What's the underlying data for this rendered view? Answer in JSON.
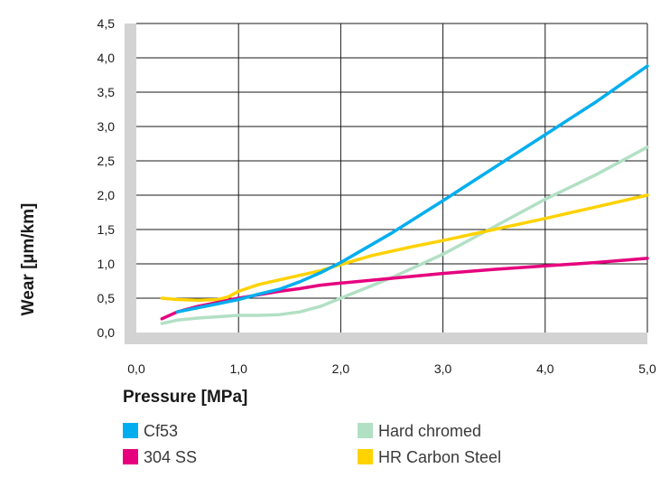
{
  "chart_data": {
    "type": "line",
    "title": "",
    "xlabel": "Pressure [MPa]",
    "ylabel": "Wear [µm/km]",
    "xlim": [
      0,
      5
    ],
    "ylim": [
      0,
      4.5
    ],
    "x_ticks": [
      0,
      1,
      2,
      3,
      4,
      5
    ],
    "x_tick_labels": [
      "0,0",
      "1,0",
      "2,0",
      "3,0",
      "4,0",
      "5,0"
    ],
    "y_ticks": [
      0,
      0.5,
      1,
      1.5,
      2,
      2.5,
      3,
      3.5,
      4,
      4.5
    ],
    "y_tick_labels": [
      "0,0",
      "0,5",
      "1,0",
      "1,5",
      "2,0",
      "2,5",
      "3,0",
      "3,5",
      "4,0",
      "4,5"
    ],
    "grid": true,
    "legend_position": "bottom",
    "series": [
      {
        "name": "Cf53",
        "color": "#00aeef",
        "x": [
          0.4,
          0.6,
          0.8,
          1.0,
          1.2,
          1.4,
          1.6,
          1.8,
          2.0,
          2.5,
          3.0,
          3.5,
          4.0,
          4.5,
          5.0
        ],
        "y": [
          0.3,
          0.36,
          0.42,
          0.48,
          0.56,
          0.63,
          0.74,
          0.87,
          1.02,
          1.45,
          1.92,
          2.4,
          2.88,
          3.36,
          3.88
        ]
      },
      {
        "name": "304 SS",
        "color": "#e6007e",
        "x": [
          0.25,
          0.4,
          0.6,
          0.8,
          1.0,
          1.2,
          1.4,
          1.6,
          1.8,
          2.0,
          2.5,
          3.0,
          3.5,
          4.0,
          4.5,
          5.0
        ],
        "y": [
          0.2,
          0.3,
          0.38,
          0.44,
          0.5,
          0.55,
          0.6,
          0.64,
          0.69,
          0.72,
          0.79,
          0.86,
          0.92,
          0.97,
          1.02,
          1.08
        ]
      },
      {
        "name": "Hard chromed",
        "color": "#b2e0c4",
        "x": [
          0.25,
          0.4,
          0.6,
          0.8,
          1.0,
          1.2,
          1.4,
          1.6,
          1.8,
          2.0,
          2.25,
          2.5,
          3.0,
          3.5,
          4.0,
          4.5,
          5.0
        ],
        "y": [
          0.13,
          0.18,
          0.21,
          0.23,
          0.25,
          0.25,
          0.26,
          0.3,
          0.38,
          0.5,
          0.65,
          0.8,
          1.14,
          1.54,
          1.94,
          2.3,
          2.7
        ]
      },
      {
        "name": "HR Carbon Steel",
        "color": "#ffd200",
        "x": [
          0.25,
          0.4,
          0.6,
          0.8,
          0.9,
          1.0,
          1.2,
          1.5,
          1.8,
          2.0,
          2.3,
          2.7,
          3.0,
          3.5,
          4.0,
          4.5,
          5.0
        ],
        "y": [
          0.5,
          0.48,
          0.47,
          0.48,
          0.52,
          0.6,
          0.7,
          0.8,
          0.9,
          0.99,
          1.12,
          1.25,
          1.34,
          1.5,
          1.66,
          1.83,
          2.0
        ]
      }
    ]
  }
}
